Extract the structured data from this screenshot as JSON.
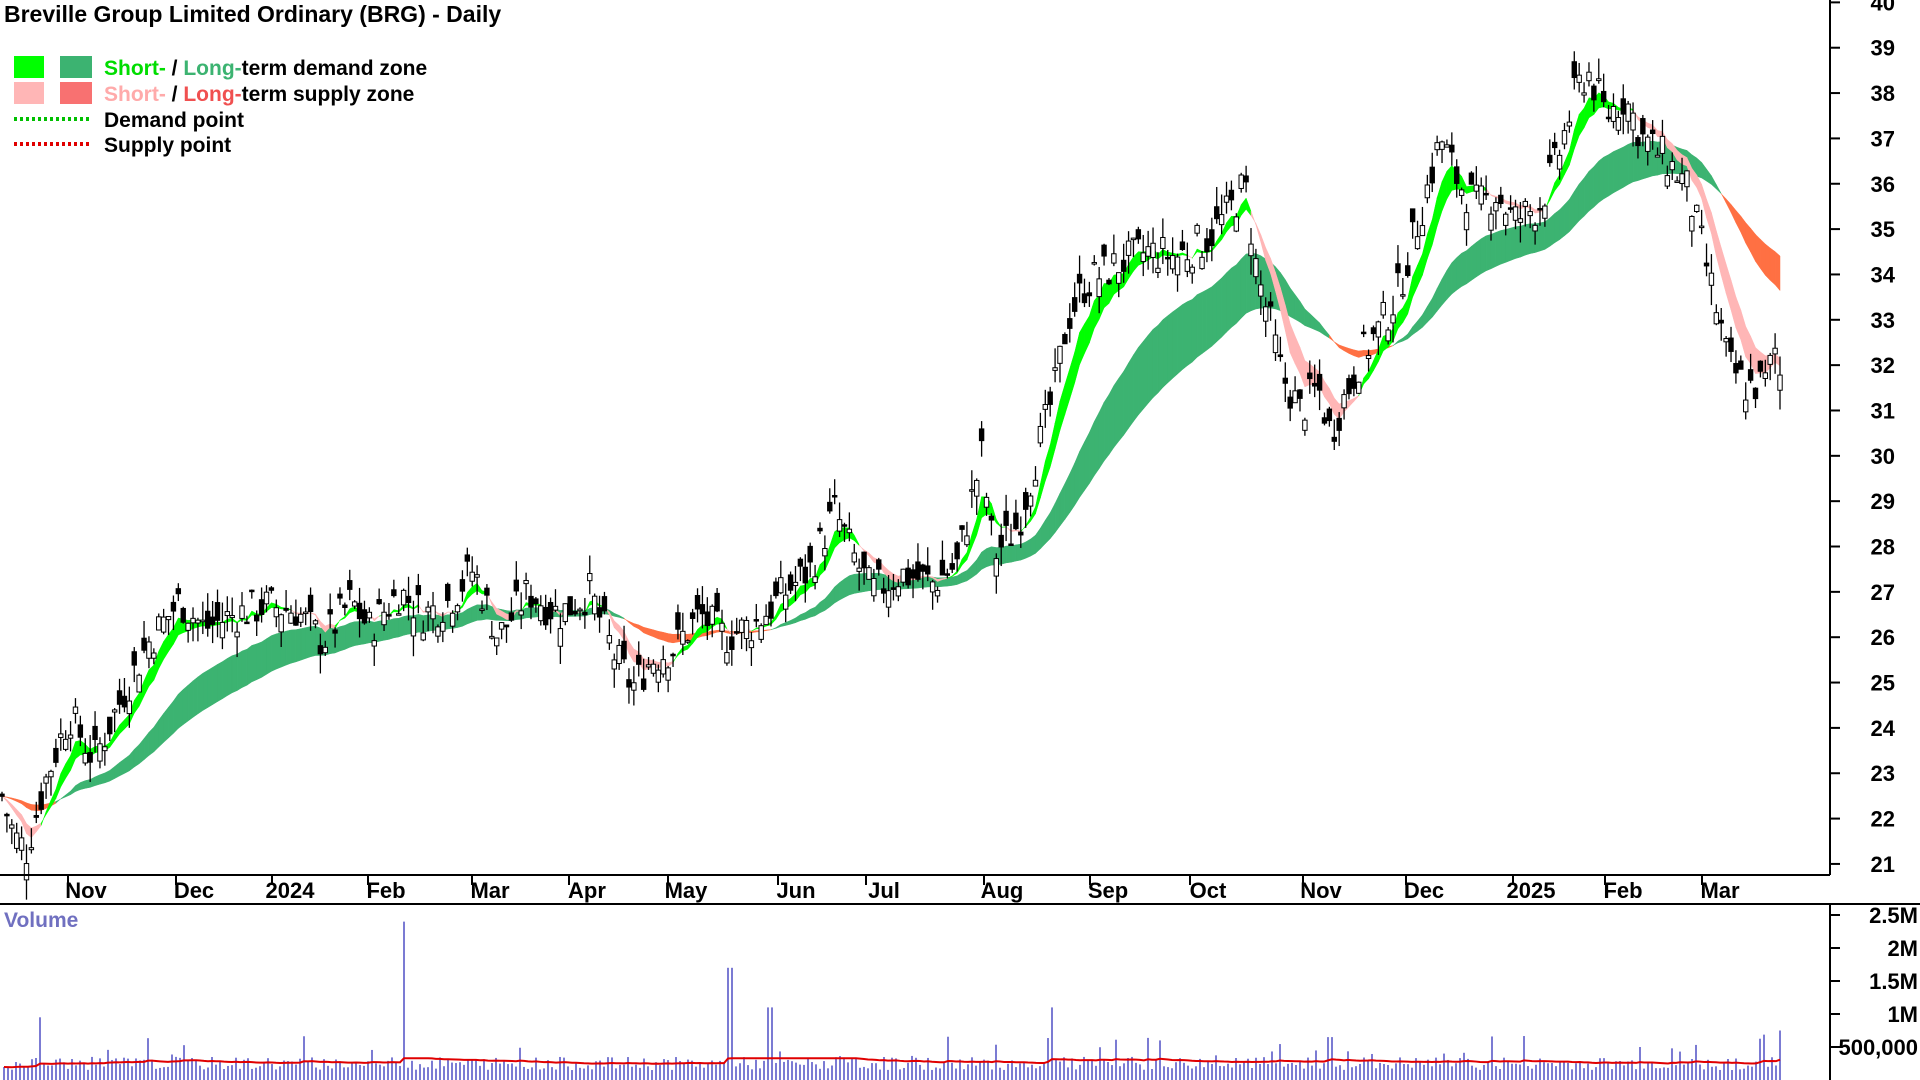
{
  "chart_data": {
    "type": "candlestick",
    "title": "Breville Group Limited Ordinary (BRG) - Daily",
    "legend": {
      "demand_zone": {
        "short": "Short-",
        "sep": " / ",
        "long": "Long-",
        "rest": "term demand zone"
      },
      "supply_zone": {
        "short": "Short-",
        "sep": " / ",
        "long": "Long-",
        "rest": "term supply zone"
      },
      "demand_point": "Demand point",
      "supply_point": "Supply point"
    },
    "x_tick_labels": [
      "Nov",
      "Dec",
      "2024",
      "Feb",
      "Mar",
      "Apr",
      "May",
      "Jun",
      "Jul",
      "Aug",
      "Sep",
      "Oct",
      "Nov",
      "Dec",
      "2025",
      "Feb",
      "Mar"
    ],
    "price_axis": {
      "range": [
        20.8,
        40
      ],
      "ticks": [
        21,
        22,
        23,
        24,
        25,
        26,
        27,
        28,
        29,
        30,
        31,
        32,
        33,
        34,
        35,
        36,
        37,
        38,
        39,
        40
      ]
    },
    "volume_panel": {
      "label": "Volume",
      "tick_labels": [
        "2.5M",
        "2M",
        "1.5M",
        "1M",
        "500,000"
      ],
      "tick_values": [
        2500000,
        2000000,
        1500000,
        1000000,
        500000
      ],
      "range": [
        0,
        2500000
      ]
    },
    "price_path": {
      "description_points_day_close": [
        [
          0,
          22.5
        ],
        [
          10,
          21.6
        ],
        [
          20,
          21.3
        ],
        [
          35,
          22.8
        ],
        [
          55,
          24.3
        ],
        [
          75,
          23.3
        ],
        [
          100,
          24.8
        ],
        [
          120,
          25.9
        ],
        [
          145,
          26.8
        ],
        [
          165,
          26.2
        ],
        [
          190,
          26.5
        ],
        [
          215,
          26.7
        ],
        [
          240,
          26.6
        ],
        [
          262,
          25.9
        ],
        [
          285,
          26.8
        ],
        [
          300,
          26.2
        ],
        [
          325,
          27.0
        ],
        [
          345,
          26.5
        ],
        [
          365,
          26.8
        ],
        [
          385,
          27.5
        ],
        [
          405,
          26.0
        ],
        [
          430,
          27.0
        ],
        [
          455,
          26.5
        ],
        [
          480,
          27.0
        ],
        [
          500,
          25.6
        ],
        [
          515,
          24.9
        ],
        [
          530,
          25.5
        ],
        [
          550,
          25.8
        ],
        [
          570,
          26.5
        ],
        [
          590,
          26.0
        ],
        [
          615,
          26.3
        ],
        [
          640,
          27.0
        ],
        [
          660,
          27.5
        ],
        [
          680,
          28.8
        ],
        [
          695,
          27.8
        ],
        [
          710,
          27.0
        ],
        [
          735,
          27.4
        ],
        [
          760,
          27.2
        ],
        [
          780,
          27.6
        ],
        [
          800,
          30.0
        ],
        [
          810,
          27.8
        ],
        [
          830,
          28.5
        ],
        [
          845,
          30.0
        ],
        [
          860,
          31.5
        ],
        [
          870,
          33.0
        ],
        [
          885,
          33.8
        ],
        [
          910,
          34.2
        ],
        [
          935,
          34.5
        ],
        [
          960,
          34.4
        ],
        [
          985,
          34.8
        ],
        [
          1005,
          35.5
        ],
        [
          1015,
          36.0
        ],
        [
          1025,
          34.0
        ],
        [
          1035,
          33.0
        ],
        [
          1045,
          31.8
        ],
        [
          1060,
          31.0
        ],
        [
          1075,
          31.5
        ],
        [
          1085,
          30.5
        ],
        [
          1095,
          31.2
        ],
        [
          1110,
          32.2
        ],
        [
          1125,
          32.8
        ],
        [
          1140,
          33.6
        ],
        [
          1160,
          35.5
        ],
        [
          1175,
          37.0
        ],
        [
          1190,
          36.0
        ],
        [
          1205,
          35.5
        ],
        [
          1220,
          35.8
        ],
        [
          1235,
          35.2
        ],
        [
          1255,
          35.5
        ],
        [
          1270,
          36.5
        ],
        [
          1285,
          38.0
        ],
        [
          1295,
          38.5
        ],
        [
          1310,
          37.5
        ],
        [
          1325,
          37.9
        ],
        [
          1340,
          37.0
        ],
        [
          1360,
          36.5
        ],
        [
          1375,
          36.0
        ],
        [
          1385,
          35.0
        ],
        [
          1398,
          33.5
        ],
        [
          1410,
          32.0
        ],
        [
          1425,
          31.5
        ],
        [
          1440,
          31.6
        ],
        [
          1450,
          32.5
        ],
        [
          1452,
          31.8
        ]
      ]
    },
    "volume_bars_note": "Daily volumes mostly 150k–350k with spikes ~2.4M (Feb 2024), ~1.7M (mid May 2024), ~1.1M (Jun 2024), ~1.1M (Aug 2024), ~0.95M (Oct 2023)",
    "colors": {
      "short_demand": "#00ff00",
      "long_demand": "#3cb371",
      "short_supply": "#ffb6b6",
      "long_supply": "#ff7043",
      "demand_point": "#00c000",
      "supply_point": "#e00000",
      "volume_bar": "#5a5ac8",
      "volume_ma": "#e00000",
      "axis": "#000000"
    }
  }
}
